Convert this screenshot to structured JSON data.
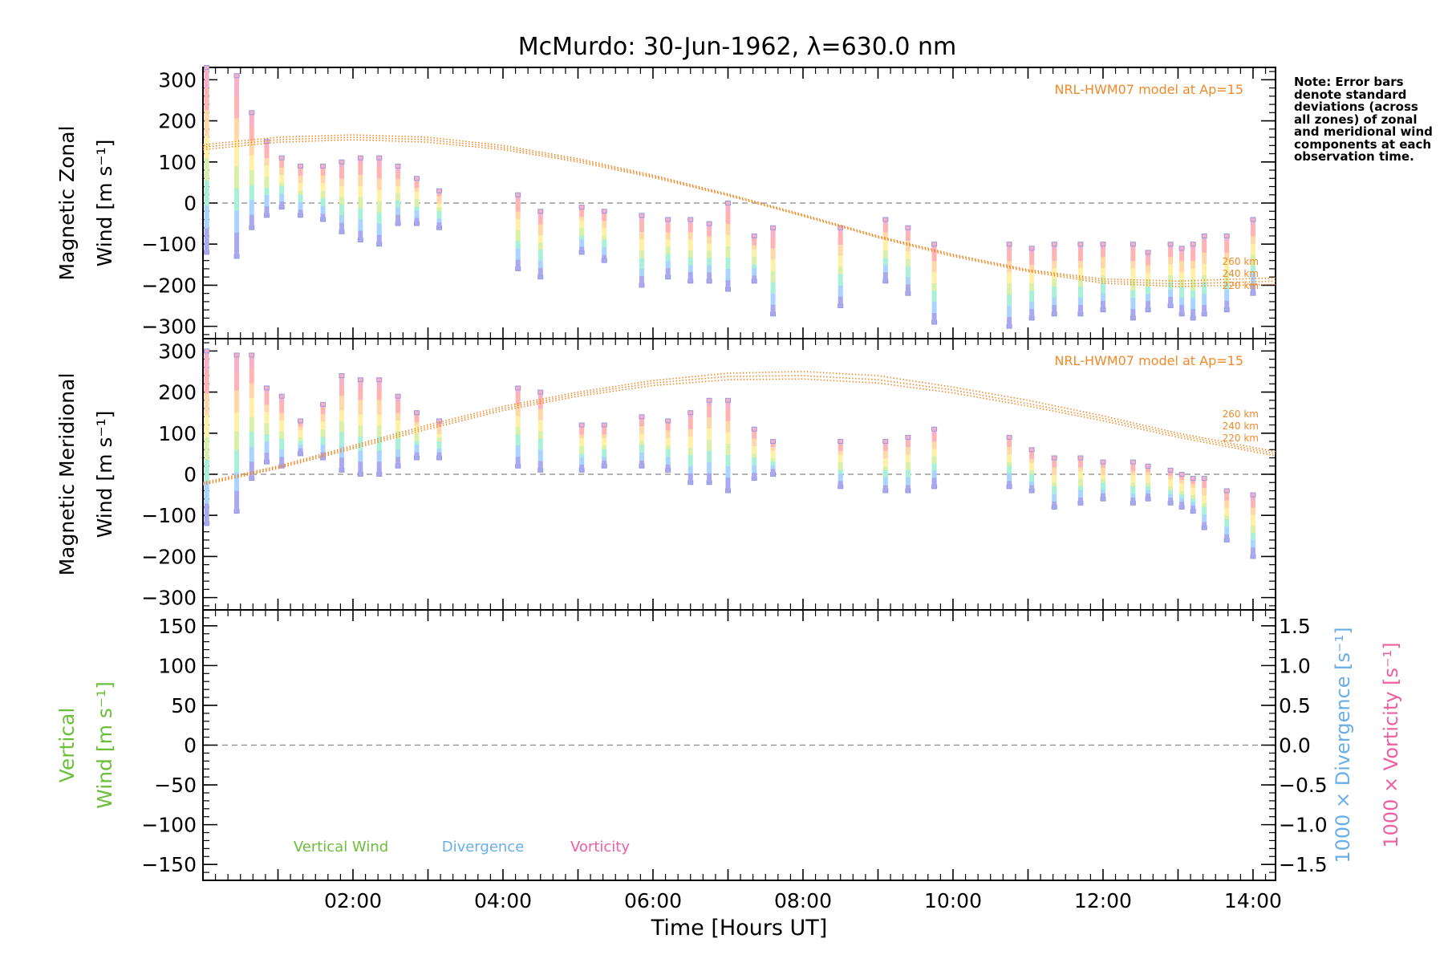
{
  "chart_data": [
    {
      "type": "scatter",
      "panel": "zonal",
      "title": "McMurdo: 30-Jun-1962, λ=630.0 nm",
      "ylabel_line1": "Magnetic Zonal",
      "ylabel_line2": "Wind [m s⁻¹]",
      "ylim": [
        -330,
        330
      ],
      "yticks": [
        300,
        200,
        100,
        0,
        -100,
        -200,
        -300
      ],
      "ytick_labels": [
        "300",
        "200",
        "100",
        "0",
        "−100",
        "−200",
        "−300"
      ],
      "xlim": [
        0.0,
        14.3
      ],
      "model_label": "NRL-HWM07 model at Ap=15",
      "model_alt_labels": [
        "260 km",
        "240 km",
        "220 km"
      ],
      "model_series": [
        {
          "name": "260 km",
          "x": [
            0,
            1,
            2,
            3,
            4,
            5,
            6,
            7,
            8,
            9,
            10,
            11,
            12,
            13,
            14.3
          ],
          "values": [
            142,
            160,
            166,
            160,
            140,
            108,
            68,
            22,
            -28,
            -80,
            -125,
            -162,
            -185,
            -190,
            -182
          ]
        },
        {
          "name": "240 km",
          "x": [
            0,
            1,
            2,
            3,
            4,
            5,
            6,
            7,
            8,
            9,
            10,
            11,
            12,
            13,
            14.3
          ],
          "values": [
            136,
            154,
            160,
            154,
            135,
            104,
            65,
            20,
            -30,
            -82,
            -127,
            -164,
            -190,
            -197,
            -190
          ]
        },
        {
          "name": "220 km",
          "x": [
            0,
            1,
            2,
            3,
            4,
            5,
            6,
            7,
            8,
            9,
            10,
            11,
            12,
            13,
            14.3
          ],
          "values": [
            130,
            148,
            154,
            148,
            130,
            100,
            62,
            18,
            -32,
            -84,
            -130,
            -167,
            -195,
            -203,
            -198
          ]
        }
      ],
      "observations": [
        {
          "x": 0.05,
          "lo": -120,
          "hi": 330
        },
        {
          "x": 0.45,
          "lo": -130,
          "hi": 310
        },
        {
          "x": 0.65,
          "lo": -60,
          "hi": 220
        },
        {
          "x": 0.85,
          "lo": -30,
          "hi": 150
        },
        {
          "x": 1.05,
          "lo": -10,
          "hi": 110
        },
        {
          "x": 1.3,
          "lo": -30,
          "hi": 90
        },
        {
          "x": 1.6,
          "lo": -40,
          "hi": 90
        },
        {
          "x": 1.85,
          "lo": -70,
          "hi": 100
        },
        {
          "x": 2.1,
          "lo": -90,
          "hi": 110
        },
        {
          "x": 2.35,
          "lo": -100,
          "hi": 110
        },
        {
          "x": 2.6,
          "lo": -50,
          "hi": 90
        },
        {
          "x": 2.85,
          "lo": -50,
          "hi": 60
        },
        {
          "x": 3.15,
          "lo": -60,
          "hi": 30
        },
        {
          "x": 4.2,
          "lo": -160,
          "hi": 20
        },
        {
          "x": 4.5,
          "lo": -180,
          "hi": -20
        },
        {
          "x": 5.05,
          "lo": -120,
          "hi": -10
        },
        {
          "x": 5.35,
          "lo": -140,
          "hi": -20
        },
        {
          "x": 5.85,
          "lo": -200,
          "hi": -30
        },
        {
          "x": 6.2,
          "lo": -180,
          "hi": -40
        },
        {
          "x": 6.5,
          "lo": -190,
          "hi": -40
        },
        {
          "x": 6.75,
          "lo": -190,
          "hi": -50
        },
        {
          "x": 7.0,
          "lo": -210,
          "hi": 0
        },
        {
          "x": 7.35,
          "lo": -190,
          "hi": -80
        },
        {
          "x": 7.6,
          "lo": -270,
          "hi": -60
        },
        {
          "x": 8.5,
          "lo": -250,
          "hi": -60
        },
        {
          "x": 9.1,
          "lo": -190,
          "hi": -40
        },
        {
          "x": 9.4,
          "lo": -220,
          "hi": -60
        },
        {
          "x": 9.75,
          "lo": -290,
          "hi": -100
        },
        {
          "x": 10.75,
          "lo": -300,
          "hi": -100
        },
        {
          "x": 11.05,
          "lo": -280,
          "hi": -110
        },
        {
          "x": 11.35,
          "lo": -270,
          "hi": -100
        },
        {
          "x": 11.7,
          "lo": -270,
          "hi": -100
        },
        {
          "x": 12.0,
          "lo": -260,
          "hi": -100
        },
        {
          "x": 12.4,
          "lo": -280,
          "hi": -100
        },
        {
          "x": 12.6,
          "lo": -260,
          "hi": -120
        },
        {
          "x": 12.9,
          "lo": -250,
          "hi": -100
        },
        {
          "x": 13.05,
          "lo": -270,
          "hi": -110
        },
        {
          "x": 13.2,
          "lo": -280,
          "hi": -100
        },
        {
          "x": 13.35,
          "lo": -270,
          "hi": -80
        },
        {
          "x": 13.65,
          "lo": -260,
          "hi": -80
        },
        {
          "x": 14.0,
          "lo": -220,
          "hi": -40
        }
      ]
    },
    {
      "type": "scatter",
      "panel": "meridional",
      "ylabel_line1": "Magnetic Meridional",
      "ylabel_line2": "Wind [m s⁻¹]",
      "ylim": [
        -330,
        330
      ],
      "yticks": [
        300,
        200,
        100,
        0,
        -100,
        -200,
        -300
      ],
      "ytick_labels": [
        "300",
        "200",
        "100",
        "0",
        "−100",
        "−200",
        "−300"
      ],
      "xlim": [
        0.0,
        14.3
      ],
      "model_label": "NRL-HWM07 model at Ap=15",
      "model_alt_labels": [
        "260 km",
        "240 km",
        "220 km"
      ],
      "model_series": [
        {
          "name": "260 km",
          "x": [
            0,
            1,
            2,
            3,
            4,
            5,
            6,
            7,
            8,
            9,
            10,
            11,
            12,
            13,
            14.3
          ],
          "values": [
            -20,
            20,
            70,
            120,
            165,
            200,
            228,
            246,
            250,
            240,
            212,
            180,
            142,
            100,
            55
          ]
        },
        {
          "name": "240 km",
          "x": [
            0,
            1,
            2,
            3,
            4,
            5,
            6,
            7,
            8,
            9,
            10,
            11,
            12,
            13,
            14.3
          ],
          "values": [
            -23,
            17,
            66,
            115,
            160,
            195,
            222,
            238,
            240,
            230,
            205,
            172,
            136,
            95,
            50
          ]
        },
        {
          "name": "220 km",
          "x": [
            0,
            1,
            2,
            3,
            4,
            5,
            6,
            7,
            8,
            9,
            10,
            11,
            12,
            13,
            14.3
          ],
          "values": [
            -26,
            14,
            62,
            110,
            155,
            190,
            216,
            230,
            232,
            222,
            198,
            166,
            130,
            90,
            45
          ]
        }
      ],
      "observations": [
        {
          "x": 0.05,
          "lo": -120,
          "hi": 300
        },
        {
          "x": 0.45,
          "lo": -90,
          "hi": 290
        },
        {
          "x": 0.65,
          "lo": -10,
          "hi": 290
        },
        {
          "x": 0.85,
          "lo": 30,
          "hi": 210
        },
        {
          "x": 1.05,
          "lo": 20,
          "hi": 190
        },
        {
          "x": 1.3,
          "lo": 50,
          "hi": 130
        },
        {
          "x": 1.6,
          "lo": 40,
          "hi": 170
        },
        {
          "x": 1.85,
          "lo": 10,
          "hi": 240
        },
        {
          "x": 2.1,
          "lo": 0,
          "hi": 230
        },
        {
          "x": 2.35,
          "lo": 0,
          "hi": 230
        },
        {
          "x": 2.6,
          "lo": 20,
          "hi": 190
        },
        {
          "x": 2.85,
          "lo": 40,
          "hi": 150
        },
        {
          "x": 3.15,
          "lo": 40,
          "hi": 130
        },
        {
          "x": 4.2,
          "lo": 20,
          "hi": 210
        },
        {
          "x": 4.5,
          "lo": 10,
          "hi": 200
        },
        {
          "x": 5.05,
          "lo": 10,
          "hi": 120
        },
        {
          "x": 5.35,
          "lo": 20,
          "hi": 120
        },
        {
          "x": 5.85,
          "lo": 20,
          "hi": 140
        },
        {
          "x": 6.2,
          "lo": 10,
          "hi": 130
        },
        {
          "x": 6.5,
          "lo": -20,
          "hi": 150
        },
        {
          "x": 6.75,
          "lo": -20,
          "hi": 180
        },
        {
          "x": 7.0,
          "lo": -40,
          "hi": 180
        },
        {
          "x": 7.35,
          "lo": -10,
          "hi": 110
        },
        {
          "x": 7.6,
          "lo": 0,
          "hi": 80
        },
        {
          "x": 8.5,
          "lo": -30,
          "hi": 80
        },
        {
          "x": 9.1,
          "lo": -40,
          "hi": 80
        },
        {
          "x": 9.4,
          "lo": -40,
          "hi": 90
        },
        {
          "x": 9.75,
          "lo": -30,
          "hi": 110
        },
        {
          "x": 10.75,
          "lo": -30,
          "hi": 90
        },
        {
          "x": 11.05,
          "lo": -40,
          "hi": 60
        },
        {
          "x": 11.35,
          "lo": -80,
          "hi": 40
        },
        {
          "x": 11.7,
          "lo": -70,
          "hi": 40
        },
        {
          "x": 12.0,
          "lo": -60,
          "hi": 30
        },
        {
          "x": 12.4,
          "lo": -70,
          "hi": 30
        },
        {
          "x": 12.6,
          "lo": -60,
          "hi": 20
        },
        {
          "x": 12.9,
          "lo": -70,
          "hi": 10
        },
        {
          "x": 13.05,
          "lo": -80,
          "hi": 0
        },
        {
          "x": 13.2,
          "lo": -90,
          "hi": -10
        },
        {
          "x": 13.35,
          "lo": -130,
          "hi": -10
        },
        {
          "x": 13.65,
          "lo": -160,
          "hi": -40
        },
        {
          "x": 14.0,
          "lo": -200,
          "hi": -50
        }
      ]
    },
    {
      "type": "line",
      "panel": "vertical",
      "ylabel_line1": "Vertical",
      "ylabel_line2": "Wind [m s⁻¹]",
      "ylim": [
        -170,
        170
      ],
      "yticks": [
        150,
        100,
        50,
        0,
        -50,
        -100,
        -150
      ],
      "ytick_labels": [
        "150",
        "100",
        "50",
        "0",
        "−50",
        "−100",
        "−150"
      ],
      "y2lim": [
        -1.7,
        1.7
      ],
      "y2ticks": [
        1.5,
        1.0,
        0.5,
        0.0,
        -0.5,
        -1.0,
        -1.5
      ],
      "y2tick_labels": [
        "1.5",
        "1.0",
        "0.5",
        "0.0",
        "−0.5",
        "−1.0",
        "−1.5"
      ],
      "y2label_divergence": "1000 × Divergence [s⁻¹]",
      "y2label_vorticity": "1000 × Vorticity [s⁻¹]",
      "xlim": [
        0.0,
        14.3
      ],
      "xticks": [
        2,
        4,
        6,
        8,
        10,
        12,
        14
      ],
      "xtick_labels": [
        "02:00",
        "04:00",
        "06:00",
        "08:00",
        "10:00",
        "12:00",
        "14:00"
      ],
      "xlabel": "Time [Hours UT]",
      "legend": [
        {
          "name": "Vertical Wind",
          "color": "#6cbf3a"
        },
        {
          "name": "Divergence",
          "color": "#6aaee6"
        },
        {
          "name": "Vorticity",
          "color": "#ef5fa0"
        }
      ]
    }
  ],
  "note_text": "Note: Error bars denote standard deviations (across all zones) of zonal and meridional wind components at each observation time.",
  "colors": {
    "model": "#f08a2a",
    "vertical": "#6cbf3a",
    "divergence": "#6aaee6",
    "vorticity": "#ef5fa0",
    "zero_line": "#888888",
    "obs_palette": [
      "#a9a9f0",
      "#a8d4ff",
      "#a8f0d8",
      "#d9f0a8",
      "#fff0a8",
      "#ffd8a8",
      "#ffb3b3",
      "#f7b0c8"
    ]
  }
}
